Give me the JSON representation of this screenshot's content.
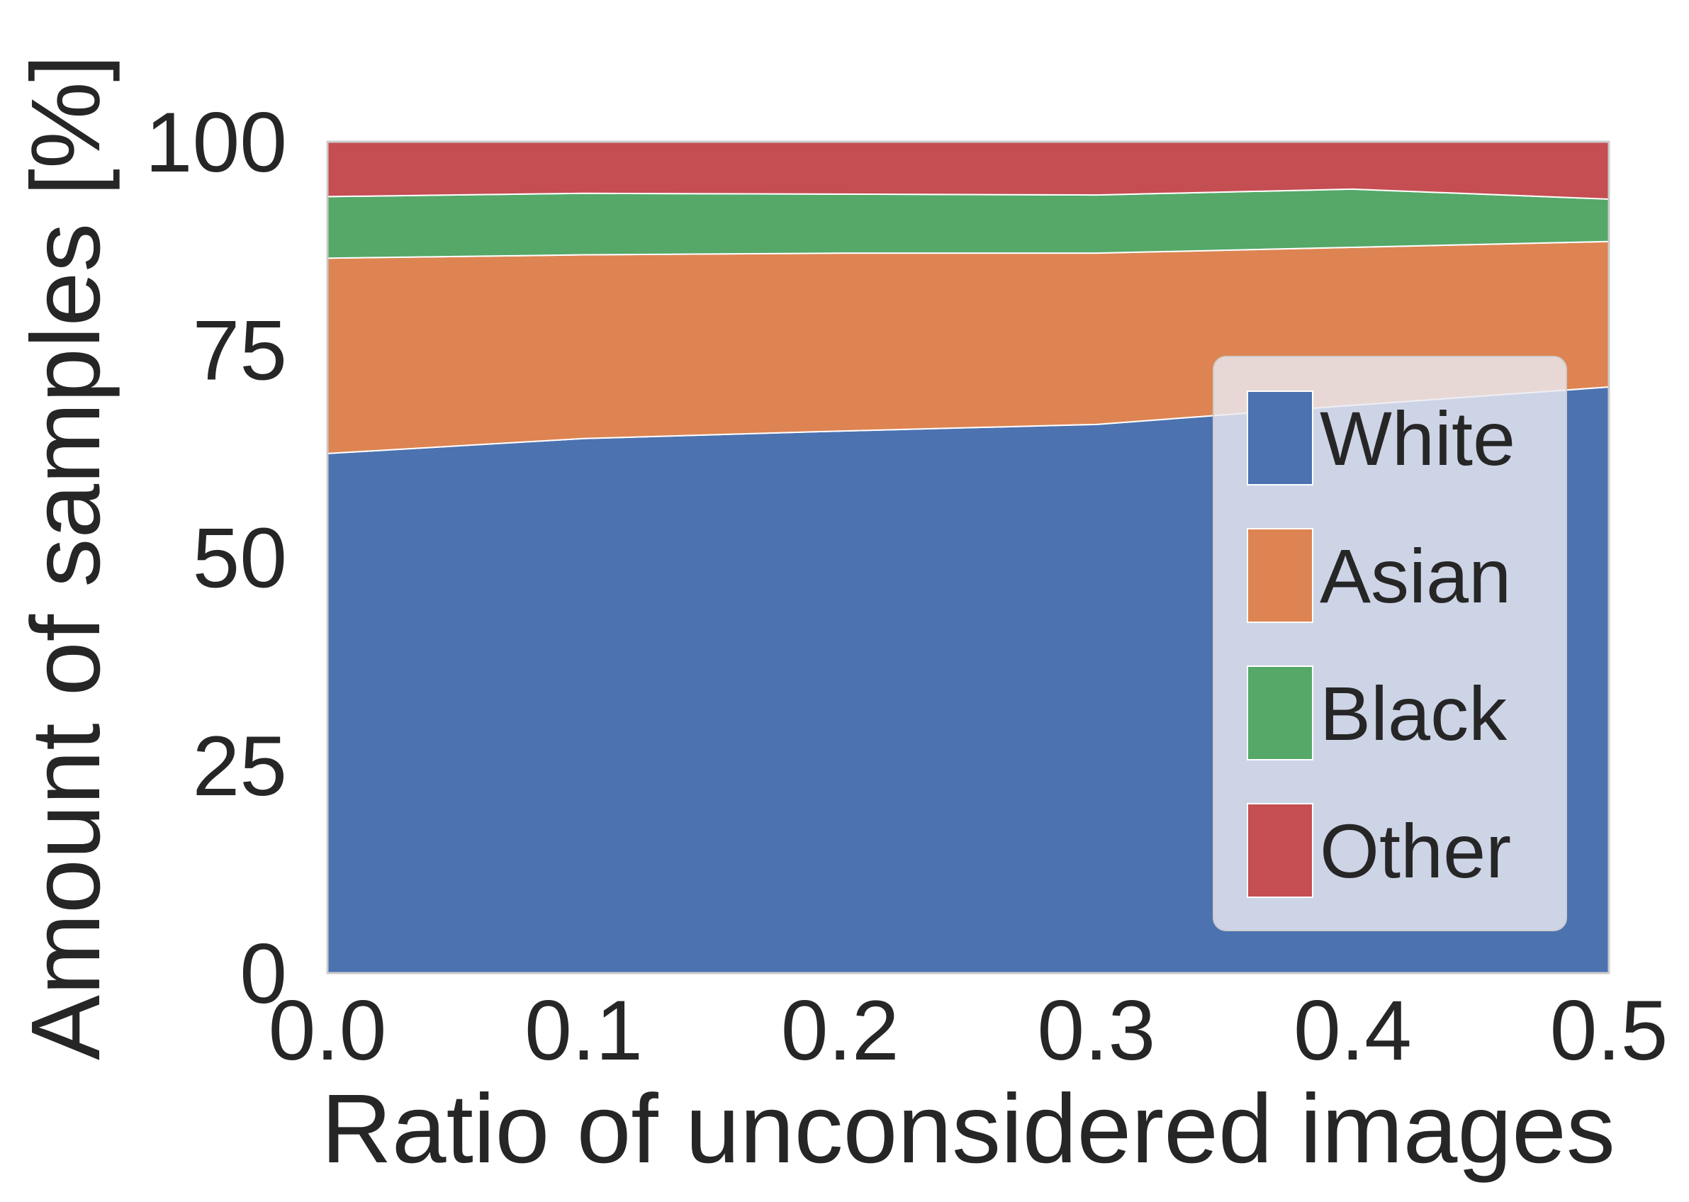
{
  "chart_data": {
    "type": "area",
    "stacked": true,
    "title": "",
    "xlabel": "Ratio of unconsidered images",
    "ylabel": "Amount of samples [%]",
    "x": [
      0.0,
      0.1,
      0.2,
      0.3,
      0.4,
      0.5
    ],
    "xlim": [
      0.0,
      0.5
    ],
    "ylim": [
      0,
      100
    ],
    "xticks": [
      "0.0",
      "0.1",
      "0.2",
      "0.3",
      "0.4",
      "0.5"
    ],
    "yticks": [
      "0",
      "25",
      "50",
      "75",
      "100"
    ],
    "grid": false,
    "legend_position": "lower-right",
    "series": [
      {
        "name": "White",
        "color": "#4c72b0",
        "values": [
          62.5,
          64.3,
          65.2,
          66.0,
          68.3,
          70.5
        ]
      },
      {
        "name": "Asian",
        "color": "#dd8452",
        "values": [
          23.5,
          22.1,
          21.4,
          20.6,
          19.0,
          17.5
        ]
      },
      {
        "name": "Black",
        "color": "#55a868",
        "values": [
          7.4,
          7.4,
          7.1,
          7.0,
          7.0,
          5.1
        ]
      },
      {
        "name": "Other",
        "color": "#c44e52",
        "values": [
          6.6,
          6.2,
          6.3,
          6.4,
          5.7,
          6.9
        ]
      }
    ]
  }
}
